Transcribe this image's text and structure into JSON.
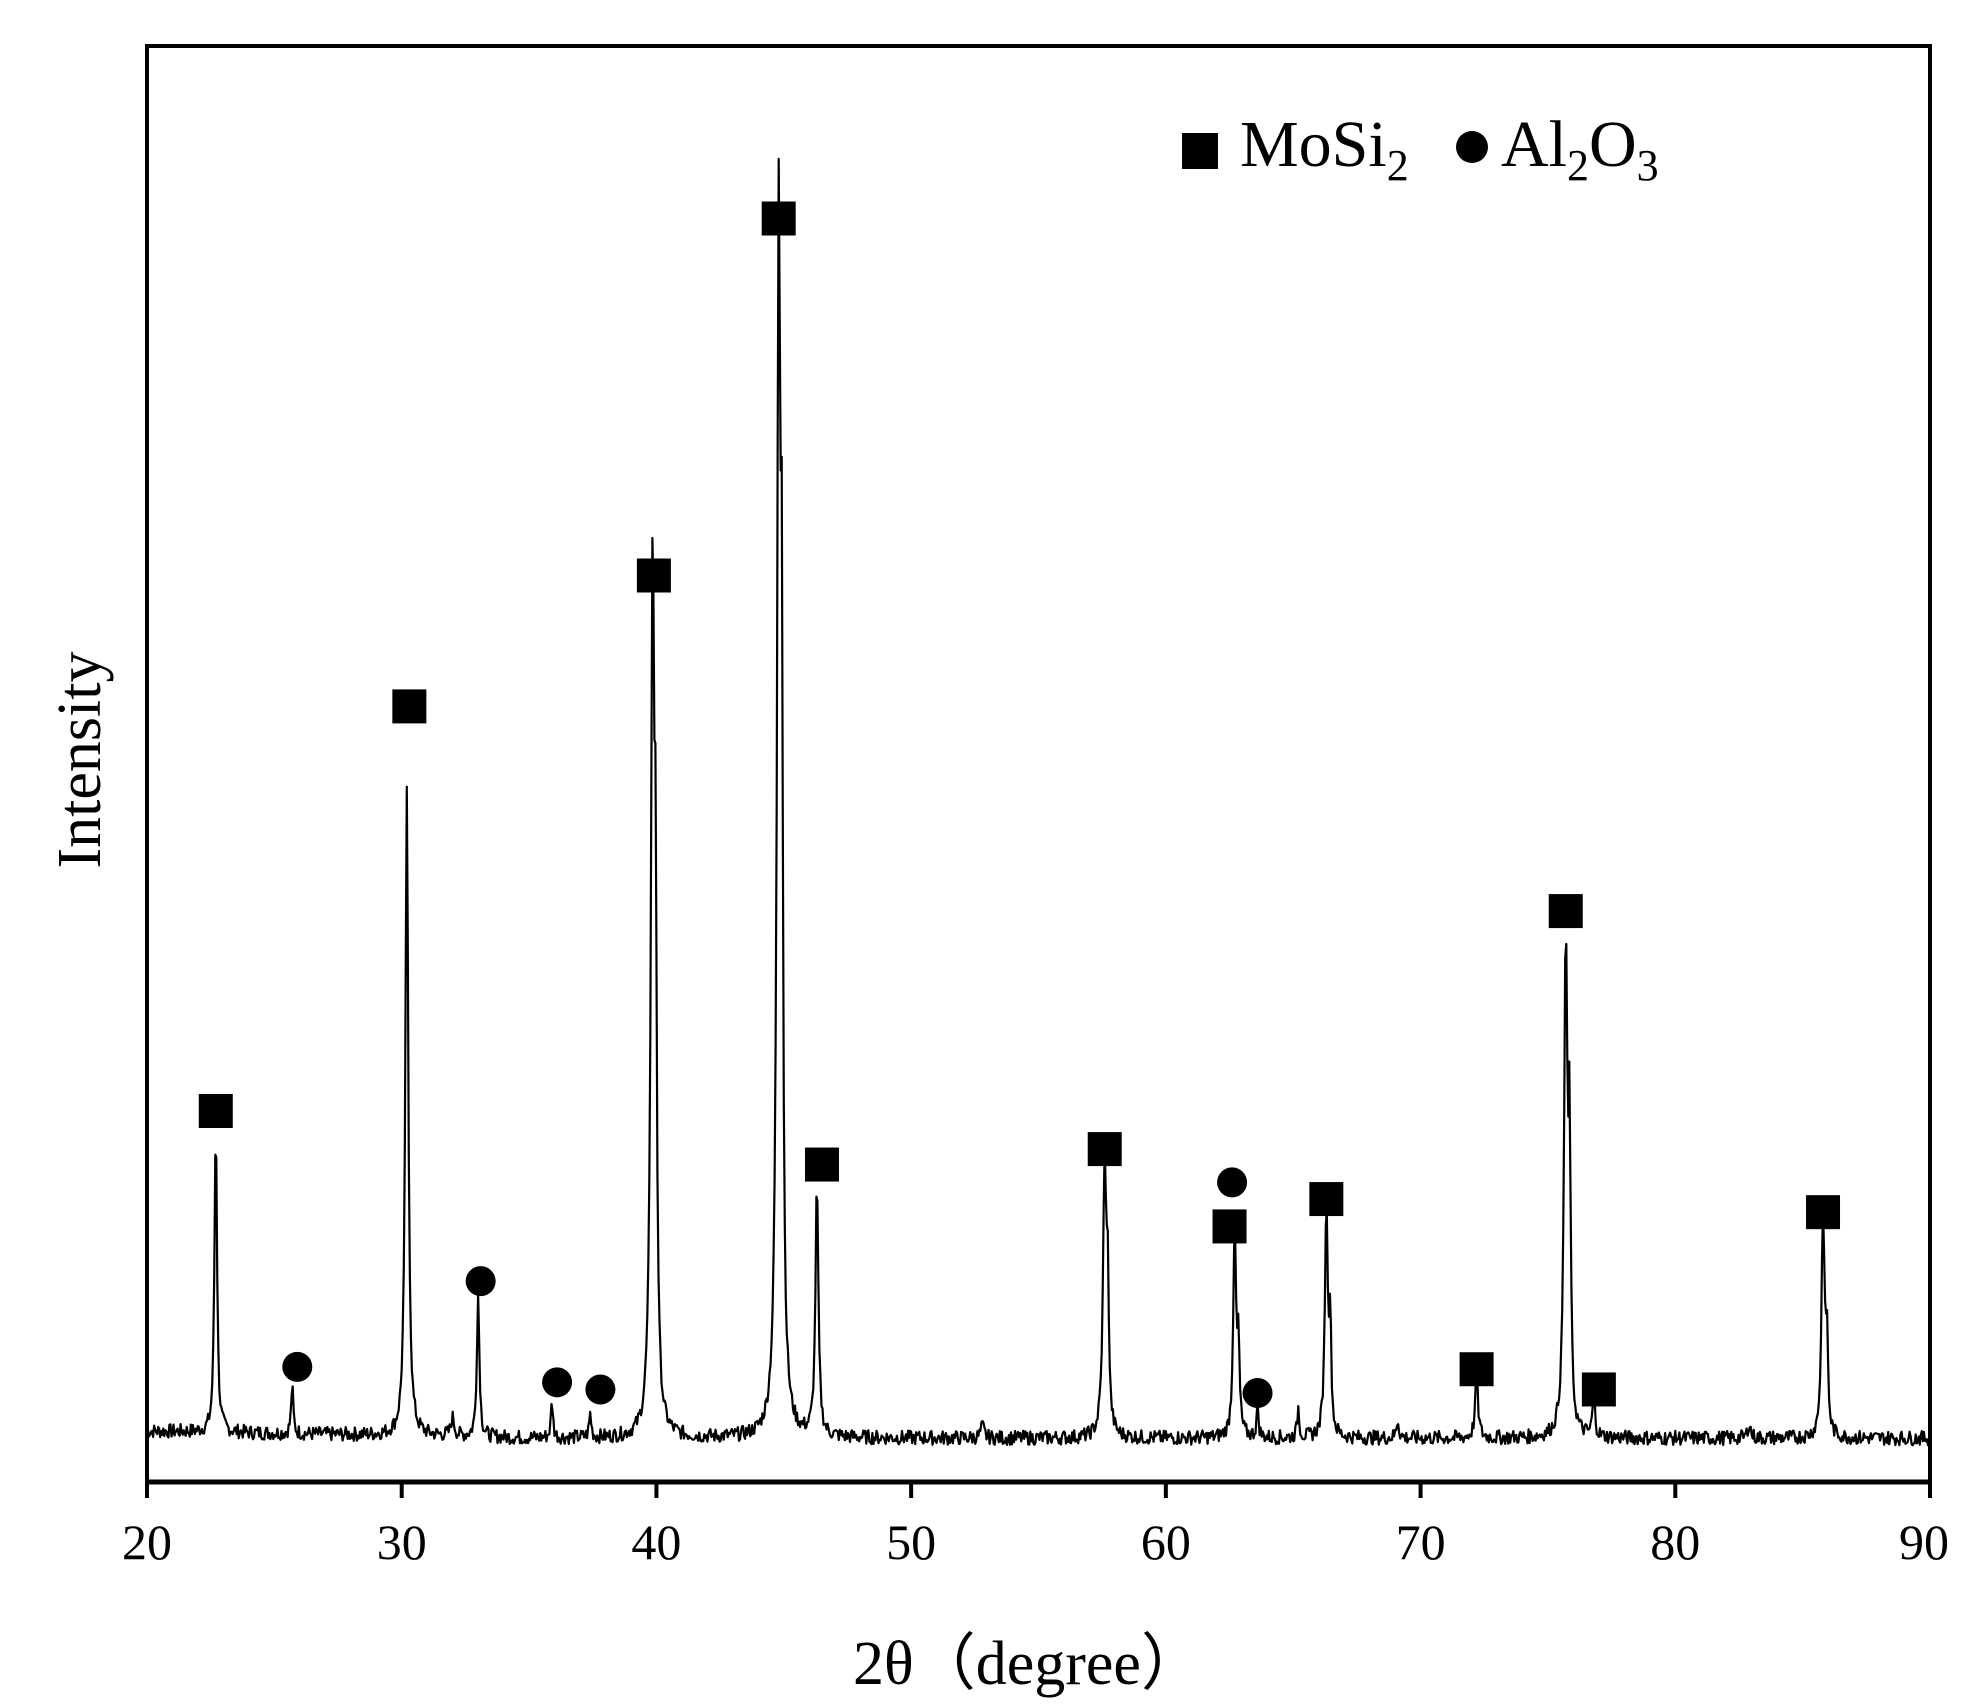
{
  "chart_data": {
    "type": "line",
    "xlabel": "2θ（degree）",
    "ylabel": "Intensity",
    "xlim": [
      20,
      90
    ],
    "x_ticks": [
      "20",
      "30",
      "40",
      "50",
      "60",
      "70",
      "80",
      "90"
    ],
    "y_ticks_shown": false,
    "grid": false,
    "legend_placement": "top-right",
    "legend": [
      {
        "marker": "square",
        "name": "MoSi",
        "subscript": "2"
      },
      {
        "marker": "circle",
        "name_parts": [
          {
            "text": "Al"
          },
          {
            "text": "2",
            "sub": true
          },
          {
            "text": "O"
          },
          {
            "text": "3",
            "sub": true
          }
        ]
      }
    ],
    "series": [
      {
        "baseline": 0.025,
        "peaks": [
          {
            "x": 22.7,
            "y": 0.26,
            "w": 0.06
          },
          {
            "x": 25.7,
            "y": 0.04,
            "w": 0.05
          },
          {
            "x": 30.2,
            "y": 0.54,
            "w": 0.07
          },
          {
            "x": 32.0,
            "y": 0.015,
            "w": 0.08
          },
          {
            "x": 33.0,
            "y": 0.12,
            "w": 0.06
          },
          {
            "x": 35.9,
            "y": 0.03,
            "w": 0.05
          },
          {
            "x": 37.4,
            "y": 0.02,
            "w": 0.05
          },
          {
            "x": 39.85,
            "y": 0.72,
            "w": 0.08
          },
          {
            "x": 39.97,
            "y": 0.35,
            "w": 0.05
          },
          {
            "x": 44.8,
            "y": 1.0,
            "w": 0.08
          },
          {
            "x": 44.92,
            "y": 0.52,
            "w": 0.05
          },
          {
            "x": 46.3,
            "y": 0.21,
            "w": 0.07
          },
          {
            "x": 52.8,
            "y": 0.01,
            "w": 0.08
          },
          {
            "x": 57.6,
            "y": 0.23,
            "w": 0.08
          },
          {
            "x": 57.72,
            "y": 0.1,
            "w": 0.05
          },
          {
            "x": 62.7,
            "y": 0.17,
            "w": 0.07
          },
          {
            "x": 62.85,
            "y": 0.07,
            "w": 0.05
          },
          {
            "x": 63.6,
            "y": 0.025,
            "w": 0.05
          },
          {
            "x": 65.2,
            "y": 0.025,
            "w": 0.05
          },
          {
            "x": 66.3,
            "y": 0.19,
            "w": 0.07
          },
          {
            "x": 66.45,
            "y": 0.09,
            "w": 0.05
          },
          {
            "x": 69.1,
            "y": 0.015,
            "w": 0.06
          },
          {
            "x": 72.2,
            "y": 0.05,
            "w": 0.07
          },
          {
            "x": 75.7,
            "y": 0.41,
            "w": 0.08
          },
          {
            "x": 75.85,
            "y": 0.22,
            "w": 0.05
          },
          {
            "x": 76.8,
            "y": 0.035,
            "w": 0.06
          },
          {
            "x": 82.9,
            "y": 0.012,
            "w": 0.07
          },
          {
            "x": 85.8,
            "y": 0.19,
            "w": 0.07
          },
          {
            "x": 85.95,
            "y": 0.08,
            "w": 0.05
          }
        ]
      }
    ],
    "annotations": [
      {
        "marker": "square",
        "x": 22.7,
        "y": 0.3
      },
      {
        "marker": "circle",
        "x": 25.9,
        "y": 0.085
      },
      {
        "marker": "square",
        "x": 30.3,
        "y": 0.64
      },
      {
        "marker": "circle",
        "x": 33.1,
        "y": 0.157
      },
      {
        "marker": "circle",
        "x": 36.1,
        "y": 0.072
      },
      {
        "marker": "circle",
        "x": 37.8,
        "y": 0.066
      },
      {
        "marker": "square",
        "x": 39.9,
        "y": 0.75
      },
      {
        "marker": "square",
        "x": 44.8,
        "y": 1.05
      },
      {
        "marker": "square",
        "x": 46.5,
        "y": 0.255
      },
      {
        "marker": "square",
        "x": 57.6,
        "y": 0.268
      },
      {
        "marker": "circle",
        "x": 62.6,
        "y": 0.24
      },
      {
        "marker": "square",
        "x": 62.5,
        "y": 0.203
      },
      {
        "marker": "circle",
        "x": 63.6,
        "y": 0.063
      },
      {
        "marker": "square",
        "x": 66.3,
        "y": 0.226
      },
      {
        "marker": "square",
        "x": 72.2,
        "y": 0.083
      },
      {
        "marker": "square",
        "x": 75.7,
        "y": 0.468
      },
      {
        "marker": "square",
        "x": 77.0,
        "y": 0.066
      },
      {
        "marker": "square",
        "x": 85.8,
        "y": 0.215
      }
    ]
  }
}
